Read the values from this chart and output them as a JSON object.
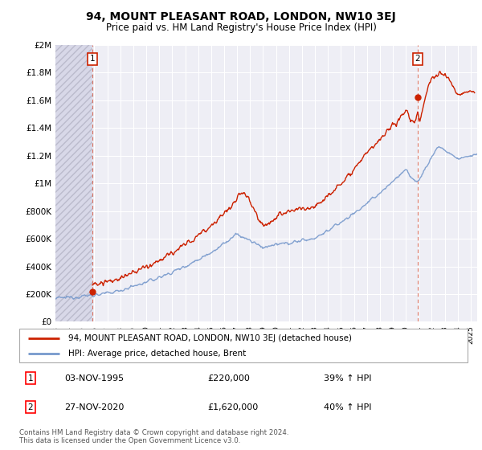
{
  "title": "94, MOUNT PLEASANT ROAD, LONDON, NW10 3EJ",
  "subtitle": "Price paid vs. HM Land Registry's House Price Index (HPI)",
  "legend_line1": "94, MOUNT PLEASANT ROAD, LONDON, NW10 3EJ (detached house)",
  "legend_line2": "HPI: Average price, detached house, Brent",
  "annotation1_date": "03-NOV-1995",
  "annotation1_value": "£220,000",
  "annotation1_pct": "39% ↑ HPI",
  "annotation2_date": "27-NOV-2020",
  "annotation2_value": "£1,620,000",
  "annotation2_pct": "40% ↑ HPI",
  "footer": "Contains HM Land Registry data © Crown copyright and database right 2024.\nThis data is licensed under the Open Government Licence v3.0.",
  "hpi_color": "#7799cc",
  "price_color": "#cc2200",
  "sale1_x": 1995.84,
  "sale1_y": 220000,
  "sale2_x": 2020.9,
  "sale2_y": 1620000,
  "ylim_min": 0,
  "ylim_max": 2000000,
  "xlim_min": 1993.0,
  "xlim_max": 2025.5,
  "yticks": [
    0,
    200000,
    400000,
    600000,
    800000,
    1000000,
    1200000,
    1400000,
    1600000,
    1800000,
    2000000
  ],
  "xticks": [
    1993,
    1994,
    1995,
    1996,
    1997,
    1998,
    1999,
    2000,
    2001,
    2002,
    2003,
    2004,
    2005,
    2006,
    2007,
    2008,
    2009,
    2010,
    2011,
    2012,
    2013,
    2014,
    2015,
    2016,
    2017,
    2018,
    2019,
    2020,
    2021,
    2022,
    2023,
    2024,
    2025
  ],
  "bg_color": "#ffffff",
  "plot_bg_color": "#eeeef5",
  "grid_color": "#ffffff",
  "hatch_bg_color": "#d8d8e8"
}
